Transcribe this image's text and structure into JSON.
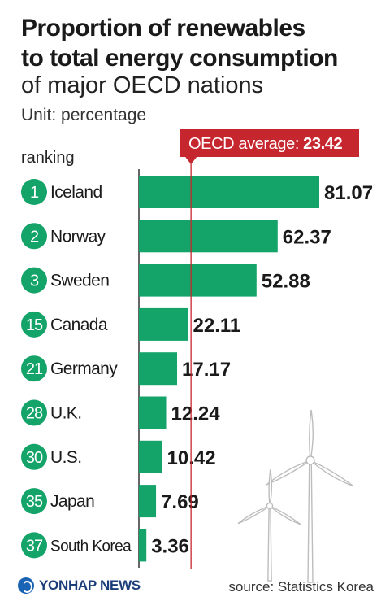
{
  "header": {
    "title_line1": "Proportion of renewables",
    "title_line2": "to total energy consumption",
    "subtitle": "of major OECD nations",
    "unit": "Unit: percentage",
    "ranking_label": "ranking"
  },
  "chart_data": {
    "type": "bar",
    "orientation": "horizontal",
    "title": "Proportion of renewables to total energy consumption of major OECD nations",
    "unit": "percentage",
    "categories": [
      "Iceland",
      "Norway",
      "Sweden",
      "Canada",
      "Germany",
      "U.K.",
      "U.S.",
      "Japan",
      "South Korea"
    ],
    "rankings": [
      "1",
      "2",
      "3",
      "15",
      "21",
      "28",
      "30",
      "35",
      "37"
    ],
    "values": [
      81.07,
      62.37,
      52.88,
      22.11,
      17.17,
      12.24,
      10.42,
      7.69,
      3.36
    ],
    "value_labels": [
      "81.07",
      "62.37",
      "52.88",
      "22.11",
      "17.17",
      "12.24",
      "10.42",
      "7.69",
      "3.36"
    ],
    "reference_line": {
      "label": "OECD average:",
      "value": 23.42,
      "value_label": "23.42"
    },
    "xlim": [
      0,
      81.07
    ],
    "grid": false,
    "colors": {
      "bar": "#14a46a",
      "badge": "#14a46a",
      "reference": "#c6262e"
    }
  },
  "footer": {
    "logo": "YONHAP NEWS",
    "source": "source: Statistics Korea"
  }
}
